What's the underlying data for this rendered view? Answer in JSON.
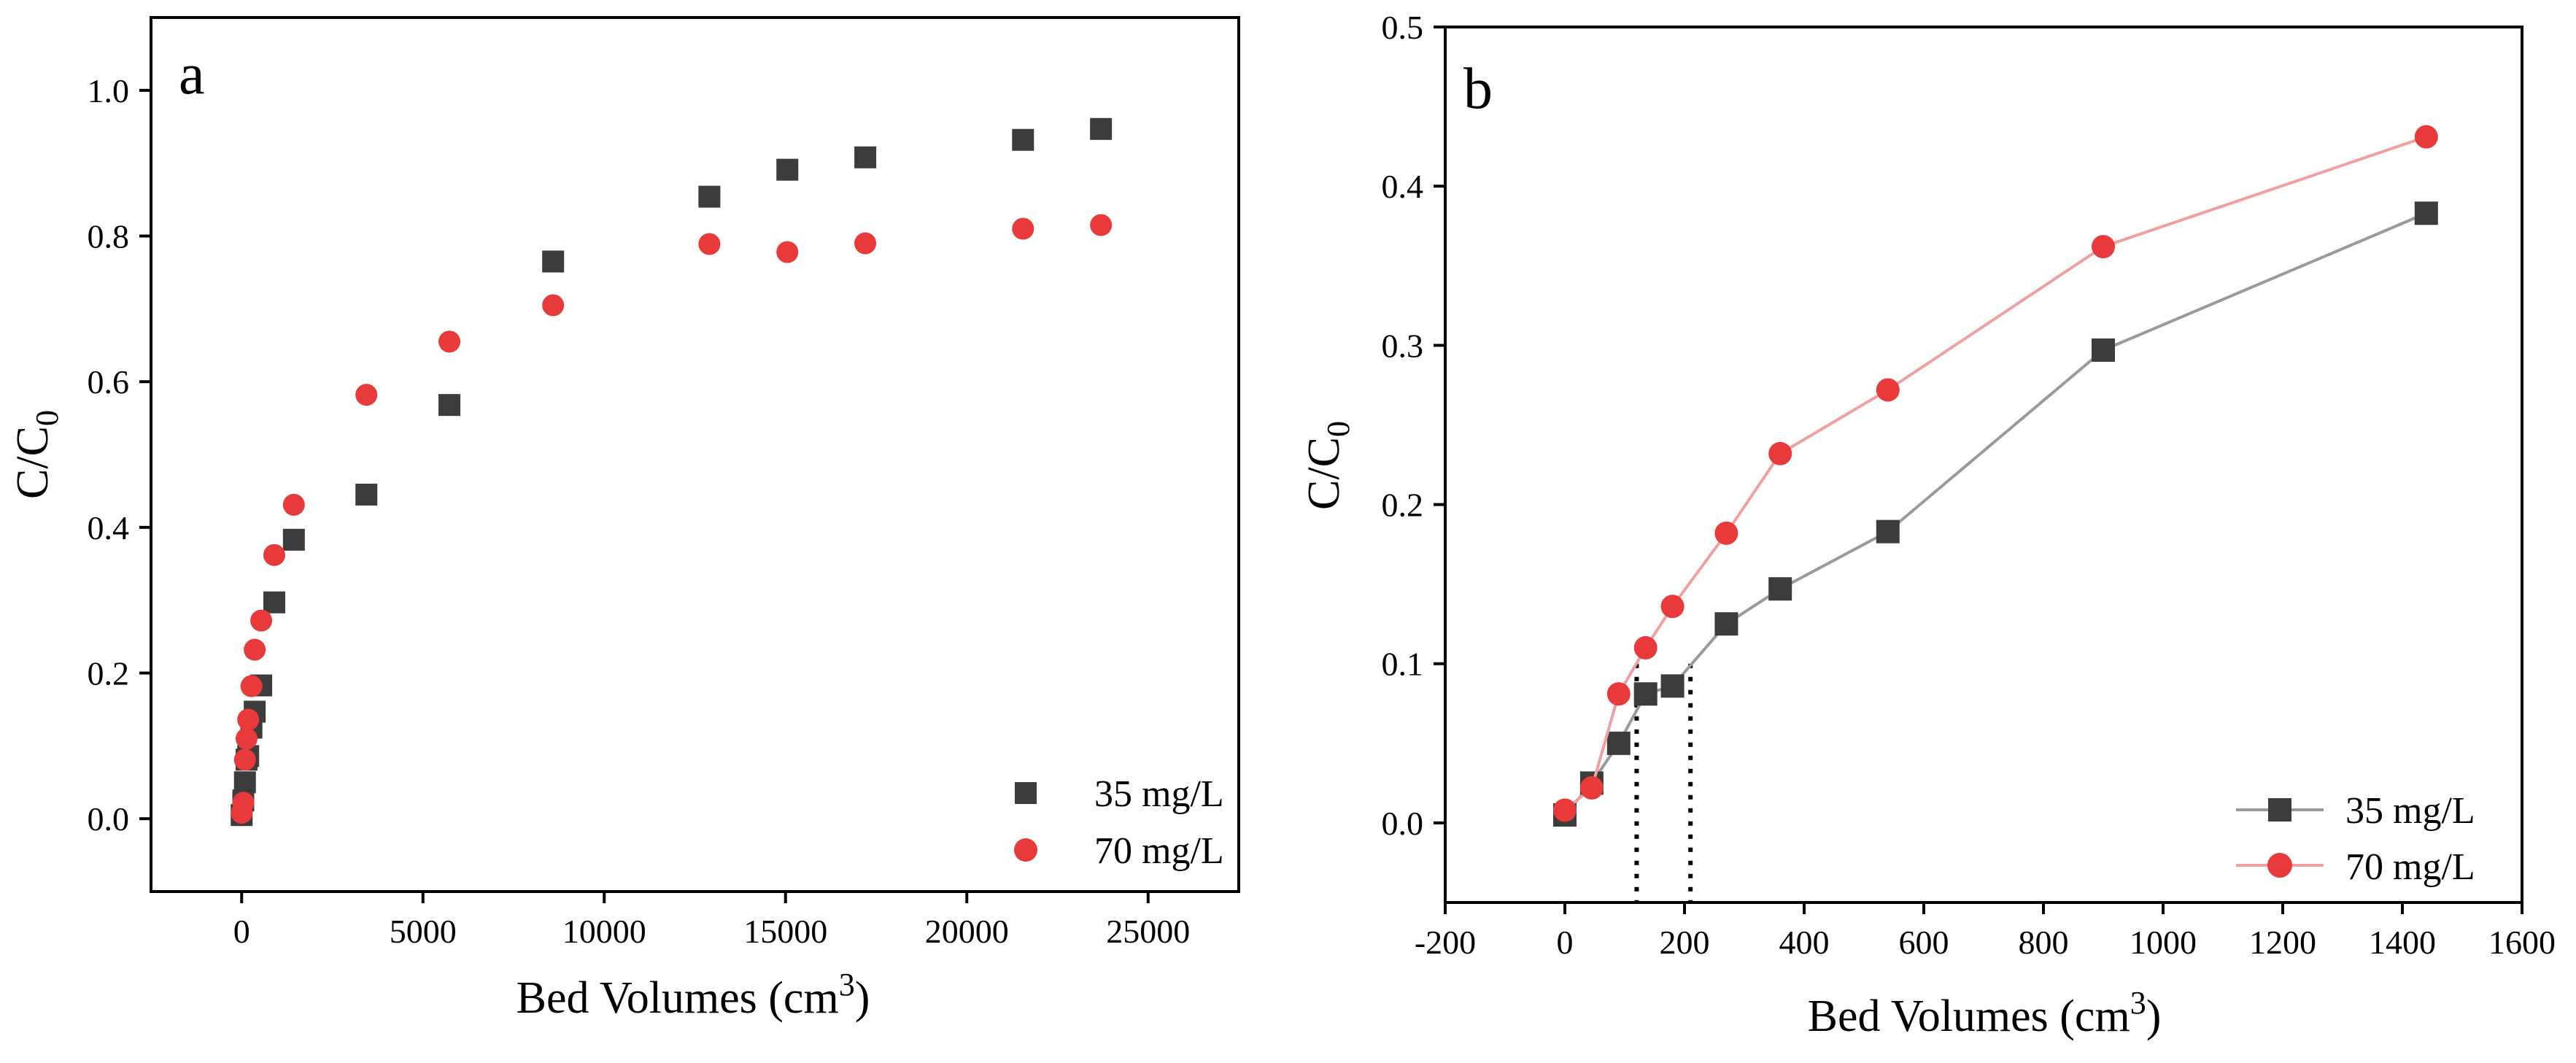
{
  "chart_data": [
    {
      "panel": "a",
      "type": "scatter",
      "xlabel": "Bed Volumes (cm",
      "xlabel_sup": "3",
      "xlabel_end": ")",
      "ylabel": "C/C",
      "ylabel_sub": "0",
      "xlim": [
        -2500,
        27500
      ],
      "ylim": [
        -0.1,
        1.1
      ],
      "xticks": [
        0,
        5000,
        10000,
        15000,
        20000,
        25000
      ],
      "xtick_labels": [
        "0",
        "5000",
        "10000",
        "15000",
        "20000",
        "25000"
      ],
      "yticks": [
        0.0,
        0.2,
        0.4,
        0.6,
        0.8,
        1.0
      ],
      "ytick_labels": [
        "0.0",
        "0.2",
        "0.4",
        "0.6",
        "0.8",
        "1.0"
      ],
      "legend_position": "bottom-right",
      "series": [
        {
          "name": "35 mg/L",
          "marker": "square",
          "color": "#3c3c3c",
          "x": [
            0,
            45,
            90,
            135,
            180,
            270,
            360,
            540,
            900,
            1440,
            3440,
            5730,
            8590,
            12900,
            15050,
            17200,
            21550,
            23700
          ],
          "y": [
            0.005,
            0.025,
            0.05,
            0.081,
            0.086,
            0.125,
            0.147,
            0.183,
            0.297,
            0.383,
            0.445,
            0.568,
            0.765,
            0.854,
            0.891,
            0.908,
            0.932,
            0.947
          ]
        },
        {
          "name": "70 mg/L",
          "marker": "circle",
          "color": "#e83a3a",
          "x": [
            0,
            45,
            90,
            135,
            180,
            270,
            360,
            540,
            900,
            1440,
            3440,
            5730,
            8590,
            12900,
            15050,
            17200,
            21550,
            23700
          ],
          "y": [
            0.008,
            0.022,
            0.081,
            0.11,
            0.136,
            0.182,
            0.232,
            0.272,
            0.362,
            0.431,
            0.582,
            0.655,
            0.705,
            0.789,
            0.778,
            0.79,
            0.81,
            0.815
          ]
        }
      ]
    },
    {
      "panel": "b",
      "type": "line",
      "xlabel": "Bed Volumes (cm",
      "xlabel_sup": "3",
      "xlabel_end": ")",
      "ylabel": "C/C",
      "ylabel_sub": "0",
      "xlim": [
        -200,
        1600
      ],
      "ylim": [
        -0.05,
        0.5
      ],
      "xticks": [
        -200,
        0,
        200,
        400,
        600,
        800,
        1000,
        1200,
        1400,
        1600
      ],
      "xtick_labels": [
        "-200",
        "0",
        "200",
        "400",
        "600",
        "800",
        "1000",
        "1200",
        "1400",
        "1600"
      ],
      "yticks": [
        0.0,
        0.1,
        0.2,
        0.3,
        0.4,
        0.5
      ],
      "ytick_labels": [
        "0.0",
        "0.1",
        "0.2",
        "0.3",
        "0.4",
        "0.5"
      ],
      "legend_position": "bottom-right",
      "guides": [
        {
          "x": 120,
          "y_top": 0.1
        },
        {
          "x": 210,
          "y_top": 0.1
        }
      ],
      "series": [
        {
          "name": "35 mg/L",
          "marker": "square",
          "color": "#3c3c3c",
          "line_color": "#9a9a9a",
          "x": [
            0,
            45,
            90,
            135,
            180,
            270,
            360,
            540,
            900,
            1440
          ],
          "y": [
            0.005,
            0.025,
            0.05,
            0.081,
            0.086,
            0.125,
            0.147,
            0.183,
            0.297,
            0.383
          ]
        },
        {
          "name": "70 mg/L",
          "marker": "circle",
          "color": "#e83a3a",
          "line_color": "#f0a0a0",
          "x": [
            0,
            45,
            90,
            135,
            180,
            270,
            360,
            540,
            900,
            1440
          ],
          "y": [
            0.008,
            0.022,
            0.081,
            0.11,
            0.136,
            0.182,
            0.232,
            0.272,
            0.362,
            0.431
          ]
        }
      ]
    }
  ]
}
